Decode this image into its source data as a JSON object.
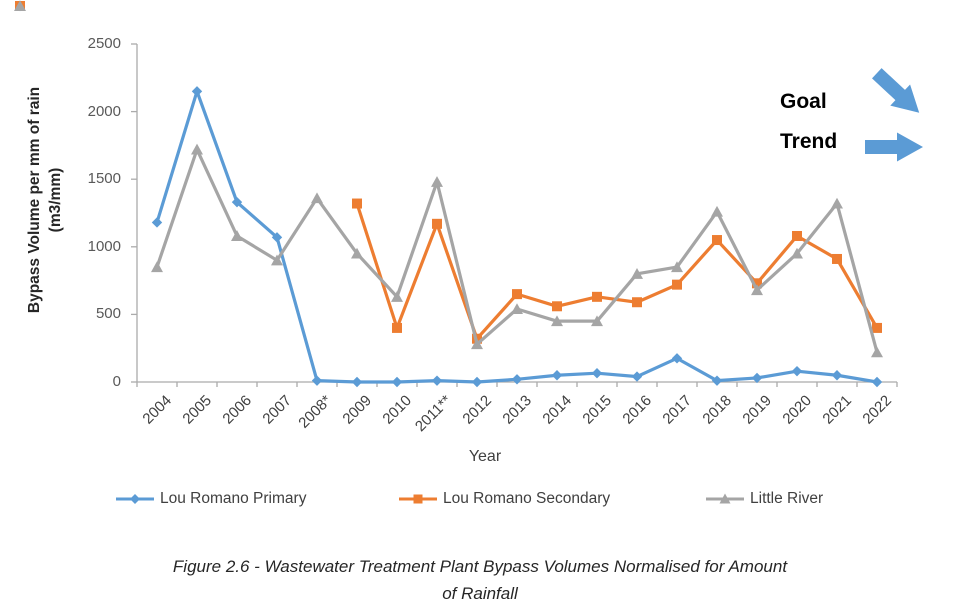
{
  "chart_data": {
    "type": "line",
    "title": "",
    "xlabel": "Year",
    "ylabel": "Bypass Volume per mm of rain (m3/mm)",
    "ylabel_lines": [
      "Bypass Volume per mm of rain",
      "(m3/mm)"
    ],
    "ylim": [
      0,
      2500
    ],
    "yticks": [
      0,
      500,
      1000,
      1500,
      2000,
      2500
    ],
    "grid": false,
    "legend_position": "bottom",
    "axis_color": "#ABABAB",
    "tick_label_color": "#595959",
    "category_label_color": "#404040",
    "categories": [
      "2004",
      "2005",
      "2006",
      "2007",
      "2008*",
      "2009",
      "2010",
      "2011**",
      "2012",
      "2013",
      "2014",
      "2015",
      "2016",
      "2017",
      "2018",
      "2019",
      "2020",
      "2021",
      "2022"
    ],
    "series": [
      {
        "name": "Lou Romano Primary",
        "color": "#5B9BD5",
        "marker": "diamond",
        "values": [
          1180,
          2150,
          1330,
          1070,
          10,
          0,
          0,
          10,
          0,
          20,
          50,
          65,
          40,
          175,
          10,
          30,
          80,
          50,
          0
        ]
      },
      {
        "name": "Lou Romano Secondary",
        "color": "#ED7D31",
        "marker": "square",
        "values": [
          null,
          null,
          null,
          null,
          null,
          1320,
          400,
          1170,
          320,
          650,
          560,
          630,
          590,
          720,
          1050,
          730,
          1080,
          910,
          400
        ]
      },
      {
        "name": "Little River",
        "color": "#A5A5A5",
        "marker": "triangle",
        "values": [
          850,
          1720,
          1080,
          900,
          1360,
          950,
          630,
          1480,
          280,
          540,
          450,
          450,
          800,
          850,
          1260,
          680,
          950,
          1320,
          220
        ]
      }
    ]
  },
  "annotations": {
    "goal_label": "Goal",
    "trend_label": "Trend",
    "arrow_color": "#5B9BD5"
  },
  "figure": {
    "caption_line1": "Figure 2.6 - Wastewater Treatment Plant Bypass Volumes Normalised for Amount",
    "caption_line2": "of Rainfall"
  }
}
